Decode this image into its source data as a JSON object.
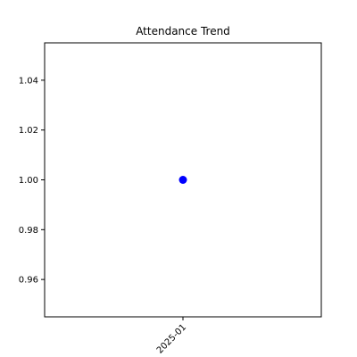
{
  "chart_data": {
    "type": "scatter",
    "title": "Attendance Trend",
    "xlabel": "",
    "ylabel": "",
    "categories": [
      "2025-01"
    ],
    "values": [
      1.0
    ],
    "ylim": [
      0.945,
      1.055
    ],
    "y_ticks": [
      0.96,
      0.98,
      1.0,
      1.02,
      1.04
    ],
    "y_tick_labels": [
      "0.96",
      "0.98",
      "1.00",
      "1.02",
      "1.04"
    ],
    "grid": false,
    "legend": "none",
    "marker_color": "#0000ff"
  }
}
